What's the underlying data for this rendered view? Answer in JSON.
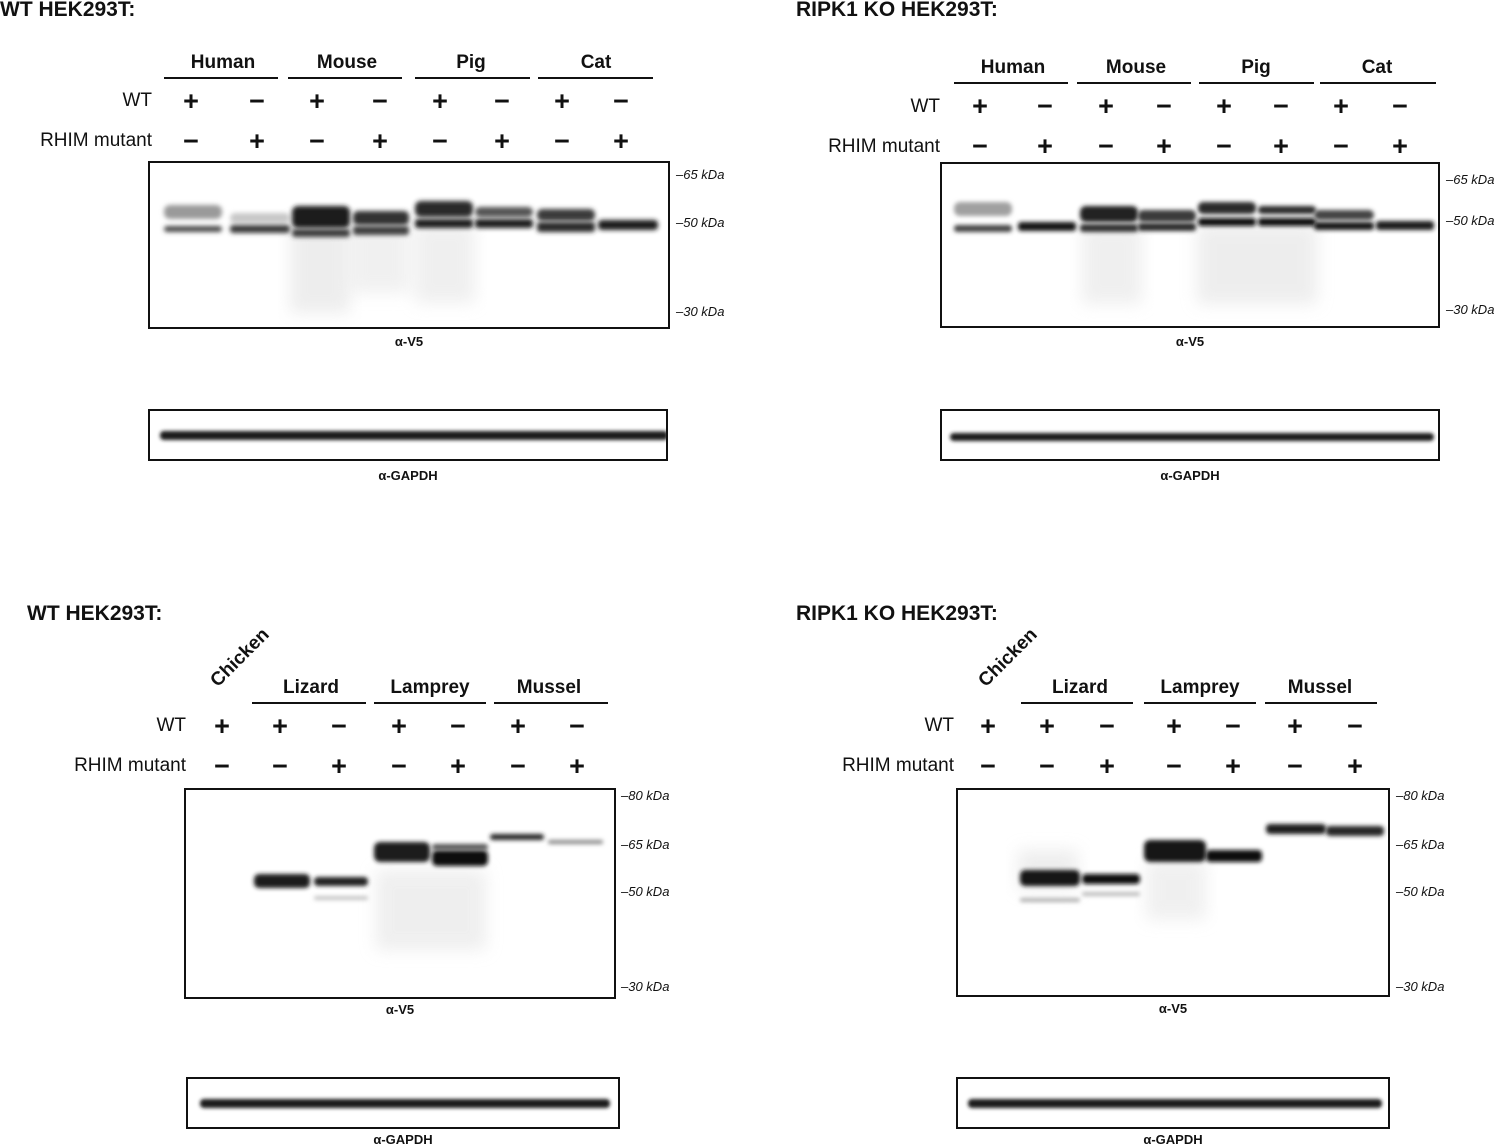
{
  "panels": [
    {
      "title": "WT HEK293T:",
      "species": [
        "Human",
        "Mouse",
        "Pig",
        "Cat"
      ],
      "wt_label": "WT",
      "mutant_label": "RHIM mutant",
      "wt_row": [
        "+",
        "−",
        "+",
        "−",
        "+",
        "−",
        "+",
        "−"
      ],
      "mutant_row": [
        "−",
        "+",
        "−",
        "+",
        "−",
        "+",
        "−",
        "+"
      ],
      "markers": [
        "–65 kDa",
        "–50 kDa",
        "–30 kDa"
      ],
      "blot_label": "α-V5",
      "loading_label": "α-GAPDH"
    },
    {
      "title": "RIPK1 KO HEK293T:",
      "species": [
        "Human",
        "Mouse",
        "Pig",
        "Cat"
      ],
      "wt_label": "WT",
      "mutant_label": "RHIM mutant",
      "wt_row": [
        "+",
        "−",
        "+",
        "−",
        "+",
        "−",
        "+",
        "−"
      ],
      "mutant_row": [
        "−",
        "+",
        "−",
        "+",
        "−",
        "+",
        "−",
        "+"
      ],
      "markers": [
        "–65 kDa",
        "–50 kDa",
        "–30 kDa"
      ],
      "blot_label": "α-V5",
      "loading_label": "α-GAPDH"
    },
    {
      "title": "WT HEK293T:",
      "single_species": "Chicken",
      "species": [
        "Lizard",
        "Lamprey",
        "Mussel"
      ],
      "wt_label": "WT",
      "mutant_label": "RHIM mutant",
      "wt_row": [
        "+",
        "+",
        "−",
        "+",
        "−",
        "+",
        "−"
      ],
      "mutant_row": [
        "−",
        "−",
        "+",
        "−",
        "+",
        "−",
        "+"
      ],
      "markers": [
        "–80 kDa",
        "–65 kDa",
        "–50 kDa",
        "–30 kDa"
      ],
      "blot_label": "α-V5",
      "loading_label": "α-GAPDH"
    },
    {
      "title": "RIPK1 KO HEK293T:",
      "single_species": "Chicken",
      "species": [
        "Lizard",
        "Lamprey",
        "Mussel"
      ],
      "wt_label": "WT",
      "mutant_label": "RHIM mutant",
      "wt_row": [
        "+",
        "+",
        "−",
        "+",
        "−",
        "+",
        "−"
      ],
      "mutant_row": [
        "−",
        "−",
        "+",
        "−",
        "+",
        "−",
        "+"
      ],
      "markers": [
        "–80 kDa",
        "–65 kDa",
        "–50 kDa",
        "–30 kDa"
      ],
      "blot_label": "α-V5",
      "loading_label": "α-GAPDH"
    }
  ]
}
